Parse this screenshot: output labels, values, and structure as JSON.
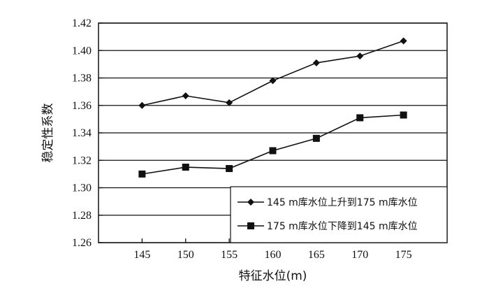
{
  "chart_data": {
    "type": "line",
    "title": "",
    "xlabel": "特征水位(m)",
    "ylabel": "稳定性系数",
    "x": [
      145,
      150,
      155,
      160,
      165,
      170,
      175
    ],
    "xlim": [
      140,
      180
    ],
    "ylim": [
      1.26,
      1.42
    ],
    "yticks": [
      "1.26",
      "1.28",
      "1.30",
      "1.32",
      "1.34",
      "1.36",
      "1.38",
      "1.40",
      "1.42"
    ],
    "xticks": [
      "145",
      "150",
      "155",
      "160",
      "165",
      "170",
      "175"
    ],
    "grid": "horizontal",
    "legend_position": "bottom-right",
    "series": [
      {
        "name": "145 m库水位上升到175 m库水位",
        "marker": "diamond",
        "color": "#111111",
        "values": [
          1.36,
          1.367,
          1.362,
          1.378,
          1.391,
          1.396,
          1.407
        ]
      },
      {
        "name": "175 m库水位下降到145 m库水位",
        "marker": "square",
        "color": "#111111",
        "values": [
          1.31,
          1.315,
          1.314,
          1.327,
          1.336,
          1.351,
          1.353
        ]
      }
    ]
  }
}
